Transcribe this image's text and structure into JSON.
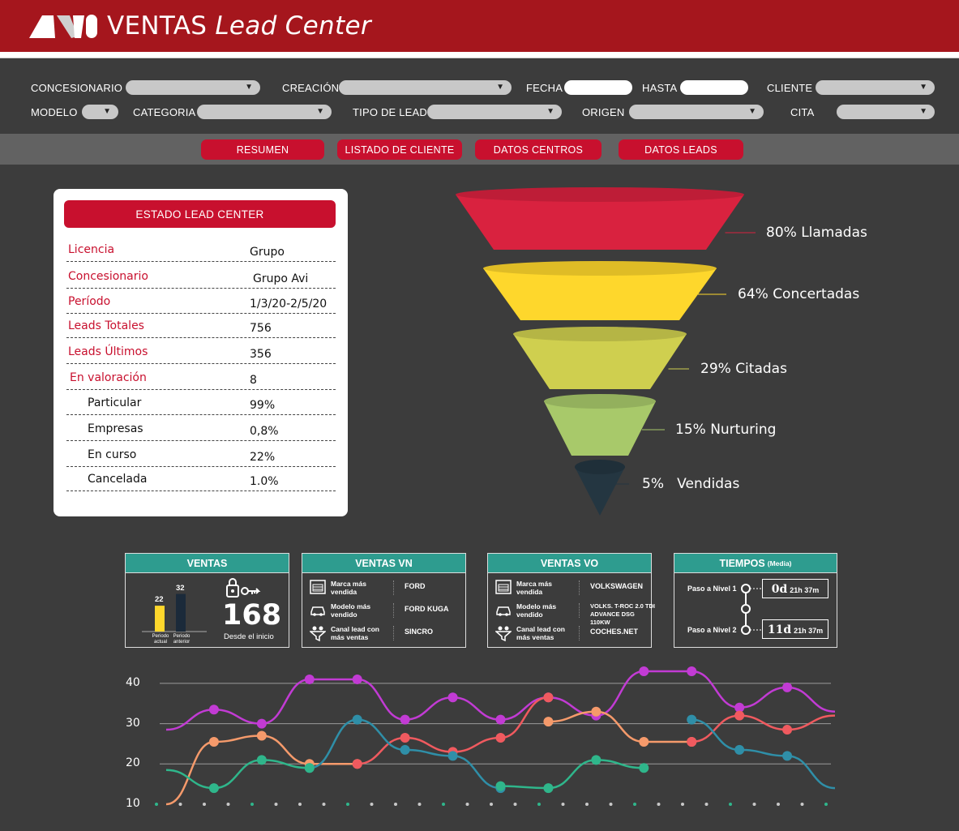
{
  "header": {
    "brand": "VENTAS",
    "title_italic": "Lead Center"
  },
  "filters": {
    "concesionario": "CONCESIONARIO",
    "creacion": "CREACIÓN",
    "fecha": "FECHA",
    "hasta": "HASTA",
    "cliente": "CLIENTE",
    "modelo": "MODELO",
    "categoria": "CATEGORIA",
    "tipo_lead": "TIPO DE LEAD",
    "origen": "ORIGEN",
    "cita": "CITA"
  },
  "tabs": [
    "RESUMEN",
    "LISTADO DE CLIENTE",
    "DATOS CENTROS",
    "DATOS LEADS"
  ],
  "estado": {
    "title": "ESTADO LEAD CENTER",
    "rows": [
      {
        "k": "Licencia",
        "v": "Grupo"
      },
      {
        "k": "Concesionario",
        "v": "Grupo Avi"
      },
      {
        "k": "Período",
        "v": "1/3/20-2/5/20"
      },
      {
        "k": "Leads Totales",
        "v": "756"
      },
      {
        "k": "Leads Últimos",
        "v": "356"
      },
      {
        "k": "En valoración",
        "v": "8"
      },
      {
        "k": "Particular",
        "v": "99%"
      },
      {
        "k": "Empresas",
        "v": "0,8%"
      },
      {
        "k": "En curso",
        "v": "22%"
      },
      {
        "k": "Cancelada",
        "v": "1.0%"
      }
    ]
  },
  "funnel": [
    {
      "label": "80% Llamadas",
      "color": "#d9223f"
    },
    {
      "label": "64% Concertadas",
      "color": "#fed72c"
    },
    {
      "label": "29% Citadas",
      "color": "#cfcf4f"
    },
    {
      "label": "15% Nurturing",
      "color": "#a8c96a"
    },
    {
      "label": "5%   Vendidas",
      "color": "#243641"
    }
  ],
  "ventas": {
    "title": "VENTAS",
    "bar_current": 22,
    "bar_previous": 32,
    "bar_current_label": "Periodo actual",
    "bar_previous_label": "Periodo anterior",
    "total": "168",
    "total_label": "Desde el inicio"
  },
  "ventas_vn": {
    "title": "VENTAS VN",
    "rows": [
      {
        "icon": "garage-icon",
        "label": "Marca más vendida",
        "value": "FORD"
      },
      {
        "icon": "car-icon",
        "label": "Modelo más vendido",
        "value": "FORD KUGA"
      },
      {
        "icon": "funnel-icon",
        "label": "Canal lead con más ventas",
        "value": "SINCRO"
      }
    ]
  },
  "ventas_vo": {
    "title": "VENTAS VO",
    "rows": [
      {
        "icon": "garage-icon",
        "label": "Marca más vendida",
        "value": "VOLKSWAGEN"
      },
      {
        "icon": "car-icon",
        "label": "Modelo más vendido",
        "value": "VOLKS. T-ROC 2.0 TDI ADVANCE DSG 110KW"
      },
      {
        "icon": "funnel-icon",
        "label": "Canal lead con más ventas",
        "value": "COCHES.NET"
      }
    ]
  },
  "tiempos": {
    "title": "TIEMPOS",
    "title_small": "(Media)",
    "n1_label": "Paso a Nivel 1",
    "n1_days": "0d",
    "n1_time": "21h 37m",
    "n2_label": "Paso a Nivel 2",
    "n2_days": "11d",
    "n2_time": "21h 37m"
  },
  "chart_data": {
    "type": "line",
    "y_ticks": [
      10,
      20,
      30,
      40
    ],
    "ylim": [
      10,
      43
    ],
    "x": [
      0,
      1,
      2,
      3,
      4,
      5,
      6,
      7,
      8,
      9,
      10,
      11,
      12,
      13,
      14
    ],
    "series": [
      {
        "color": "#c23bd4",
        "values": [
          28.5,
          33.5,
          30,
          41,
          41,
          31,
          36.5,
          31,
          36.5,
          32,
          43,
          43,
          34,
          39,
          33
        ]
      },
      {
        "color": "#f59a6b",
        "values": [
          10,
          25.5,
          27,
          20,
          20,
          null,
          null,
          null,
          30.5,
          33,
          25.5,
          25.5,
          null,
          null,
          null
        ]
      },
      {
        "color": "#f05a5f",
        "values": [
          null,
          null,
          null,
          null,
          20,
          26.5,
          23,
          26.5,
          36.5,
          null,
          null,
          25.5,
          32,
          28.5,
          32
        ]
      },
      {
        "color": "#2f8fa8",
        "values": [
          null,
          null,
          null,
          19,
          31,
          23.5,
          22,
          14,
          null,
          null,
          null,
          31,
          23.5,
          22,
          14
        ]
      },
      {
        "color": "#2fb68b",
        "values": [
          18.5,
          14,
          21,
          19,
          null,
          null,
          null,
          14.5,
          14,
          21,
          19,
          null,
          null,
          null,
          null
        ]
      }
    ]
  }
}
